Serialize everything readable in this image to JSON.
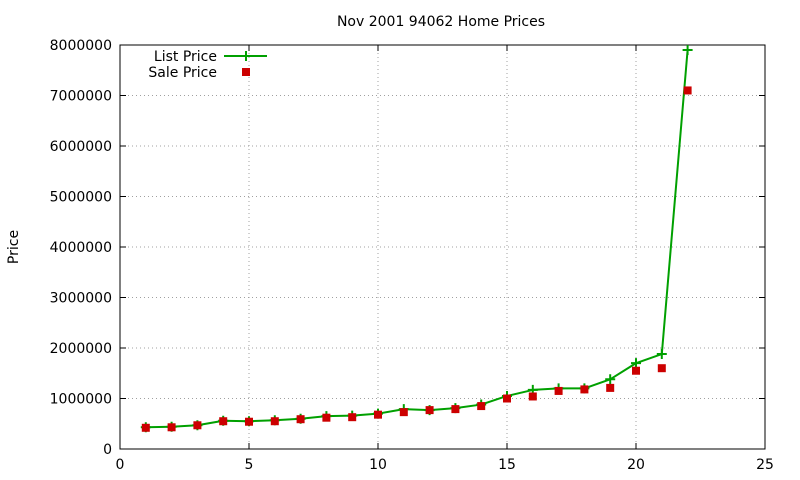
{
  "chart_data": {
    "type": "line",
    "title": "Nov 2001 94062 Home Prices",
    "xlabel": "",
    "ylabel": "Price",
    "xlim": [
      0,
      25
    ],
    "ylim": [
      0,
      8000000
    ],
    "x_ticks": [
      0,
      5,
      10,
      15,
      20,
      25
    ],
    "y_ticks": [
      0,
      1000000,
      2000000,
      3000000,
      4000000,
      5000000,
      6000000,
      7000000,
      8000000
    ],
    "grid": true,
    "legend_position": "top-left",
    "series": [
      {
        "name": "List Price",
        "style": "line with plus markers",
        "color": "#00a000",
        "x": [
          1,
          2,
          3,
          4,
          5,
          6,
          7,
          8,
          9,
          10,
          11,
          12,
          13,
          14,
          15,
          16,
          17,
          18,
          19,
          20,
          21,
          22
        ],
        "values": [
          430000,
          440000,
          470000,
          560000,
          550000,
          570000,
          600000,
          650000,
          660000,
          700000,
          790000,
          770000,
          810000,
          880000,
          1050000,
          1170000,
          1200000,
          1200000,
          1380000,
          1700000,
          1880000,
          7900000
        ]
      },
      {
        "name": "Sale Price",
        "style": "square markers",
        "color": "#cc0000",
        "x": [
          1,
          2,
          3,
          4,
          5,
          6,
          7,
          8,
          9,
          10,
          11,
          12,
          13,
          14,
          15,
          16,
          17,
          18,
          19,
          20,
          21,
          22
        ],
        "values": [
          420000,
          430000,
          470000,
          550000,
          540000,
          550000,
          590000,
          620000,
          630000,
          680000,
          730000,
          770000,
          790000,
          850000,
          1000000,
          1040000,
          1150000,
          1180000,
          1210000,
          1550000,
          1600000,
          7100000
        ]
      }
    ]
  }
}
